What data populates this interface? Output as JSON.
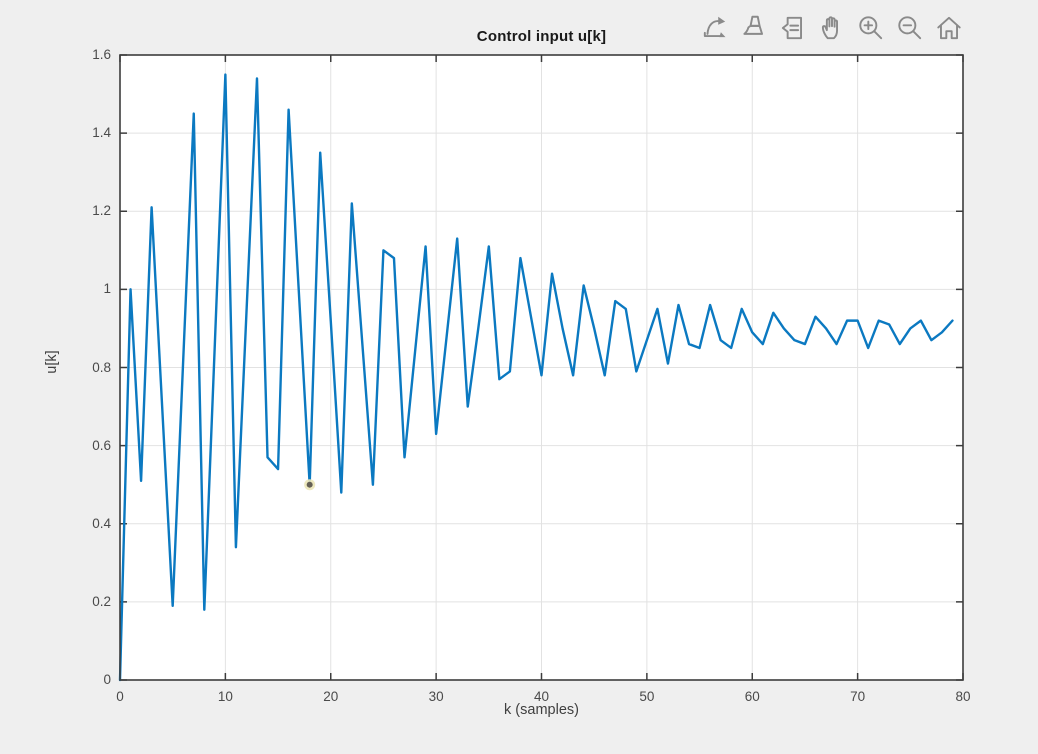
{
  "figure": {
    "background_color": "#efefef",
    "toolbar": {
      "icon_color": "#8a8a8a",
      "buttons": [
        {
          "name": "export",
          "icon": "export-icon"
        },
        {
          "name": "brush data",
          "icon": "brush-icon"
        },
        {
          "name": "data tips",
          "icon": "datatips-icon"
        },
        {
          "name": "pan",
          "icon": "pan-icon"
        },
        {
          "name": "zoom in",
          "icon": "zoom-in-icon"
        },
        {
          "name": "zoom out",
          "icon": "zoom-out-icon"
        },
        {
          "name": "restore view",
          "icon": "home-icon"
        }
      ]
    }
  },
  "chart_data": {
    "type": "line",
    "title": "Control input u[k]",
    "xlabel": "k (samples)",
    "ylabel": "u[k]",
    "xlim": [
      0,
      80
    ],
    "ylim": [
      0,
      1.6
    ],
    "xtick_values": [
      0,
      10,
      20,
      30,
      40,
      50,
      60,
      70,
      80
    ],
    "xtick_labels": [
      "0",
      "10",
      "20",
      "30",
      "40",
      "50",
      "60",
      "70",
      "80"
    ],
    "ytick_values": [
      0,
      0.2,
      0.4,
      0.6,
      0.8,
      1,
      1.2,
      1.4,
      1.6
    ],
    "ytick_labels": [
      "0",
      "0.2",
      "0.4",
      "0.6",
      "0.8",
      "1",
      "1.2",
      "1.4",
      "1.6"
    ],
    "grid": true,
    "legend": "none",
    "x_description": "sample index k = 0..79, step 1",
    "series": [
      {
        "name": "u[k]",
        "values": [
          0.0,
          1.0,
          0.51,
          1.21,
          0.7,
          0.19,
          0.82,
          1.45,
          0.18,
          0.86,
          1.55,
          0.34,
          0.94,
          1.54,
          0.57,
          0.54,
          1.46,
          0.98,
          0.5,
          1.35,
          0.92,
          0.48,
          1.22,
          0.86,
          0.5,
          1.1,
          1.08,
          0.57,
          0.84,
          1.11,
          0.63,
          0.88,
          1.13,
          0.7,
          0.9,
          1.11,
          0.77,
          0.79,
          1.08,
          0.93,
          0.78,
          1.04,
          0.9,
          0.78,
          1.01,
          0.9,
          0.78,
          0.97,
          0.95,
          0.79,
          0.87,
          0.95,
          0.81,
          0.96,
          0.86,
          0.85,
          0.96,
          0.87,
          0.85,
          0.95,
          0.89,
          0.86,
          0.94,
          0.9,
          0.87,
          0.86,
          0.93,
          0.9,
          0.86,
          0.92,
          0.92,
          0.85,
          0.92,
          0.91,
          0.86,
          0.9,
          0.92,
          0.87,
          0.89,
          0.92
        ]
      }
    ],
    "marker": {
      "k": 18,
      "u": 0.5,
      "color": "#656055",
      "halo_color": "#ece7b8"
    },
    "colors": {
      "line": "#0b79c1",
      "grid": "#e2e2e2",
      "box": "#3c3c3c",
      "plot_bg": "#ffffff",
      "tick_label": "#4a4a4a"
    }
  }
}
